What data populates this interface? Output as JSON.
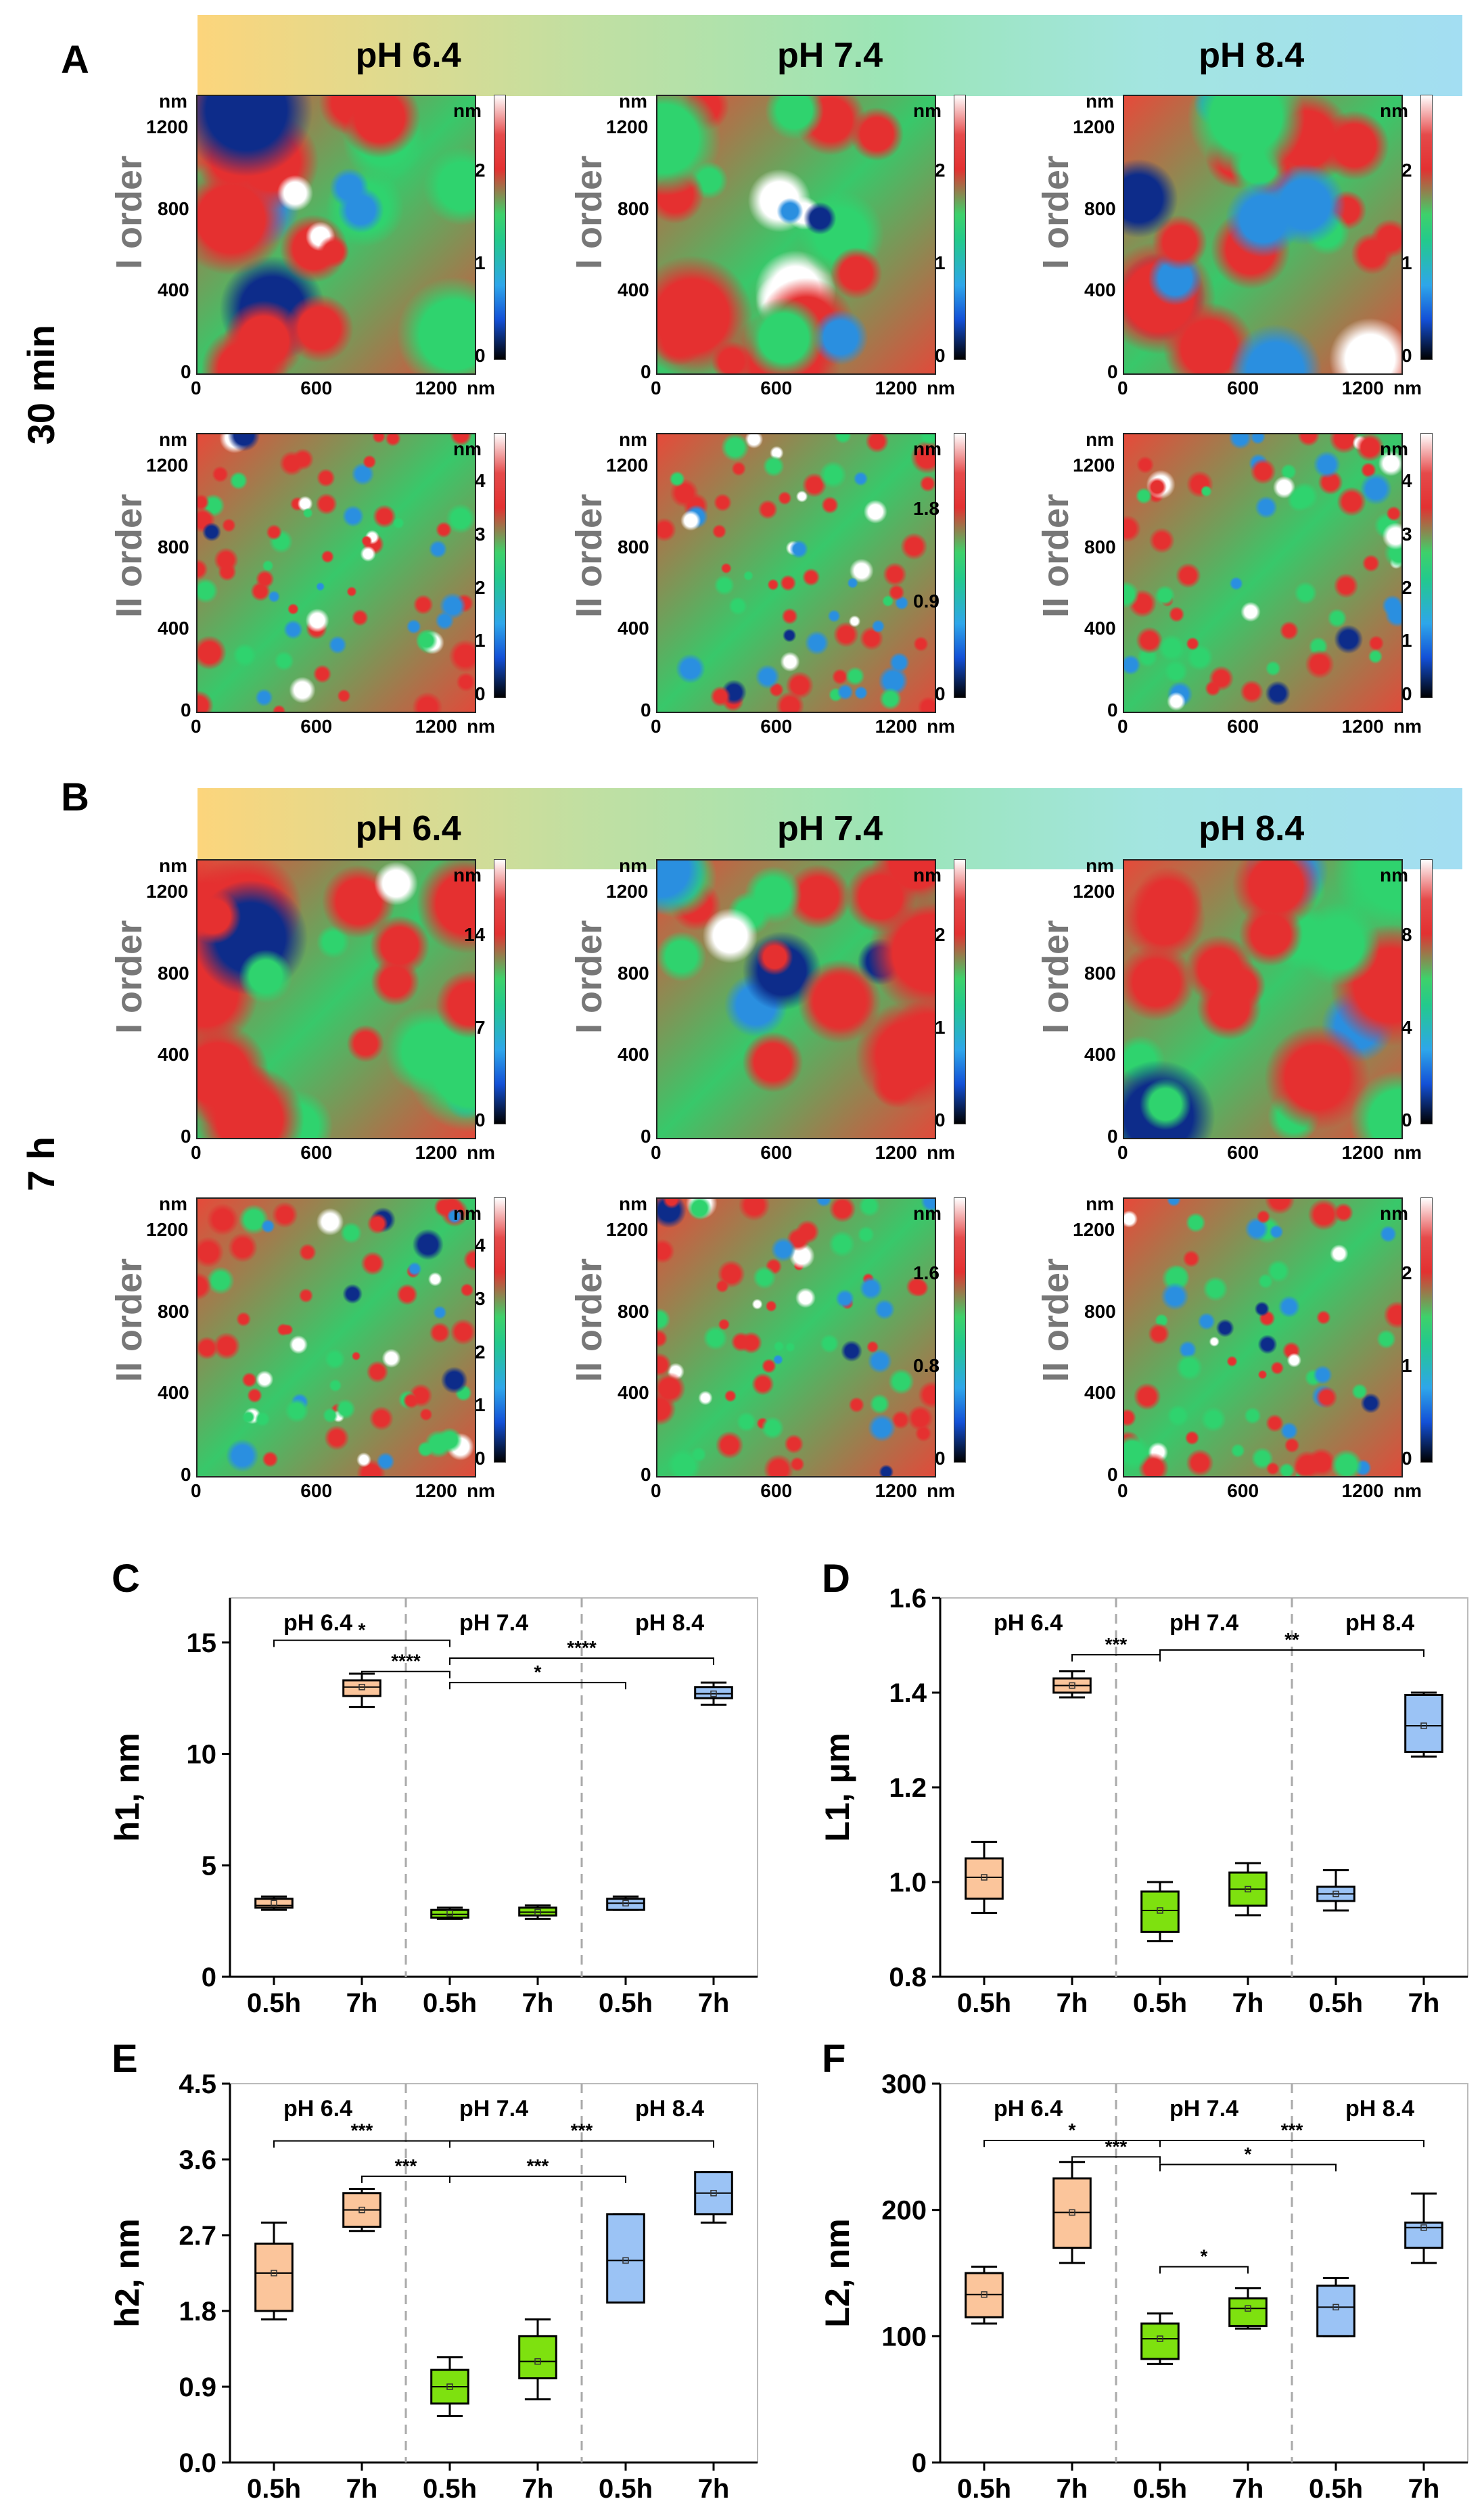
{
  "panel_letters": [
    "A",
    "B",
    "C",
    "D",
    "E",
    "F"
  ],
  "ph_labels": [
    "pH 6.4",
    "pH 7.4",
    "pH 8.4"
  ],
  "time_labels": [
    "30 min",
    "7 h"
  ],
  "order_labels": [
    "I order",
    "II order"
  ],
  "axis_unit": "nm",
  "axis_ticks_x": [
    "0",
    "600",
    "1200"
  ],
  "axis_ticks_y": [
    "0",
    "400",
    "800",
    "1200"
  ],
  "colorbars": {
    "A_I": [
      [
        "2",
        "1",
        "0"
      ],
      [
        "2",
        "1",
        "0"
      ],
      [
        "2",
        "1",
        "0"
      ]
    ],
    "A_II": [
      [
        "4",
        "3",
        "2",
        "1",
        "0"
      ],
      [
        "1.8",
        "0.9",
        "0"
      ],
      [
        "4",
        "3",
        "2",
        "1",
        "0"
      ]
    ],
    "B_I": [
      [
        "14",
        "7",
        "0"
      ],
      [
        "2",
        "1",
        "0"
      ],
      [
        "8",
        "4",
        "0"
      ]
    ],
    "B_II": [
      [
        "4",
        "3",
        "2",
        "1",
        "0"
      ],
      [
        "1.6",
        "0.8",
        "0"
      ],
      [
        "2",
        "1",
        "0"
      ]
    ]
  },
  "box_colors": {
    "ph64": "#fbc59b",
    "ph74": "#7ee10f",
    "ph84": "#9bc3f5"
  },
  "chart_data": [
    {
      "type": "box",
      "panel": "C",
      "ylabel": "h1, nm",
      "ylim": [
        0,
        17
      ],
      "yticks": [
        0,
        5,
        10,
        15
      ],
      "categories": [
        "0.5h",
        "7h",
        "0.5h",
        "7h",
        "0.5h",
        "7h"
      ],
      "groups": [
        "pH 6.4",
        "pH 7.4",
        "pH 8.4"
      ],
      "boxes": [
        {
          "min": 3.0,
          "q1": 3.1,
          "median": 3.2,
          "q3": 3.5,
          "max": 3.6,
          "mean": 3.3
        },
        {
          "min": 12.1,
          "q1": 12.6,
          "median": 13.0,
          "q3": 13.3,
          "max": 13.6,
          "mean": 13.0
        },
        {
          "min": 2.6,
          "q1": 2.65,
          "median": 2.8,
          "q3": 3.0,
          "max": 3.1,
          "mean": 2.85
        },
        {
          "min": 2.6,
          "q1": 2.75,
          "median": 2.9,
          "q3": 3.1,
          "max": 3.2,
          "mean": 2.9
        },
        {
          "min": 3.0,
          "q1": 3.0,
          "median": 3.3,
          "q3": 3.5,
          "max": 3.6,
          "mean": 3.3
        },
        {
          "min": 12.2,
          "q1": 12.5,
          "median": 12.7,
          "q3": 13.0,
          "max": 13.2,
          "mean": 12.7
        }
      ],
      "significance": [
        {
          "from": 0,
          "to": 2,
          "label": "*",
          "level": 15.1
        },
        {
          "from": 1,
          "to": 2,
          "label": "****",
          "level": 13.7
        },
        {
          "from": 2,
          "to": 5,
          "label": "****",
          "level": 14.3
        },
        {
          "from": 2,
          "to": 4,
          "label": "*",
          "level": 13.2
        }
      ]
    },
    {
      "type": "box",
      "panel": "D",
      "ylabel": "L1, μm",
      "ylim": [
        0.8,
        1.6
      ],
      "yticks": [
        0.8,
        1.0,
        1.2,
        1.4,
        1.6
      ],
      "categories": [
        "0.5h",
        "7h",
        "0.5h",
        "7h",
        "0.5h",
        "7h"
      ],
      "groups": [
        "pH 6.4",
        "pH 7.4",
        "pH 8.4"
      ],
      "boxes": [
        {
          "min": 0.935,
          "q1": 0.965,
          "median": 1.01,
          "q3": 1.05,
          "max": 1.085,
          "mean": 1.01
        },
        {
          "min": 1.39,
          "q1": 1.4,
          "median": 1.415,
          "q3": 1.43,
          "max": 1.445,
          "mean": 1.415
        },
        {
          "min": 0.875,
          "q1": 0.895,
          "median": 0.94,
          "q3": 0.98,
          "max": 1.0,
          "mean": 0.94
        },
        {
          "min": 0.93,
          "q1": 0.95,
          "median": 0.985,
          "q3": 1.02,
          "max": 1.04,
          "mean": 0.985
        },
        {
          "min": 0.94,
          "q1": 0.96,
          "median": 0.975,
          "q3": 0.99,
          "max": 1.025,
          "mean": 0.975
        },
        {
          "min": 1.265,
          "q1": 1.275,
          "median": 1.33,
          "q3": 1.395,
          "max": 1.4,
          "mean": 1.33
        }
      ],
      "significance": [
        {
          "from": 1,
          "to": 2,
          "label": "***",
          "level": 1.48
        },
        {
          "from": 2,
          "to": 5,
          "label": "**",
          "level": 1.49
        }
      ]
    },
    {
      "type": "box",
      "panel": "E",
      "ylabel": "h2, nm",
      "ylim": [
        0,
        4.5
      ],
      "yticks": [
        0.0,
        0.9,
        1.8,
        2.7,
        3.6,
        4.5
      ],
      "categories": [
        "0.5h",
        "7h",
        "0.5h",
        "7h",
        "0.5h",
        "7h"
      ],
      "groups": [
        "pH 6.4",
        "pH 7.4",
        "pH 8.4"
      ],
      "boxes": [
        {
          "min": 1.7,
          "q1": 1.8,
          "median": 2.25,
          "q3": 2.6,
          "max": 2.85,
          "mean": 2.25
        },
        {
          "min": 2.75,
          "q1": 2.8,
          "median": 3.0,
          "q3": 3.2,
          "max": 3.25,
          "mean": 3.0
        },
        {
          "min": 0.55,
          "q1": 0.7,
          "median": 0.9,
          "q3": 1.1,
          "max": 1.25,
          "mean": 0.9
        },
        {
          "min": 0.75,
          "q1": 1.0,
          "median": 1.2,
          "q3": 1.5,
          "max": 1.7,
          "mean": 1.2
        },
        {
          "min": 1.9,
          "q1": 1.9,
          "median": 2.4,
          "q3": 2.95,
          "max": 2.95,
          "mean": 2.4
        },
        {
          "min": 2.85,
          "q1": 2.95,
          "median": 3.2,
          "q3": 3.45,
          "max": 3.45,
          "mean": 3.2
        }
      ],
      "significance": [
        {
          "from": 0,
          "to": 2,
          "label": "***",
          "level": 3.82
        },
        {
          "from": 1,
          "to": 2,
          "label": "***",
          "level": 3.4
        },
        {
          "from": 2,
          "to": 5,
          "label": "***",
          "level": 3.82
        },
        {
          "from": 2,
          "to": 4,
          "label": "***",
          "level": 3.4
        }
      ]
    },
    {
      "type": "box",
      "panel": "F",
      "ylabel": "L2, nm",
      "ylim": [
        0,
        300
      ],
      "yticks": [
        0,
        100,
        200,
        300
      ],
      "categories": [
        "0.5h",
        "7h",
        "0.5h",
        "7h",
        "0.5h",
        "7h"
      ],
      "groups": [
        "pH 6.4",
        "pH 7.4",
        "pH 8.4"
      ],
      "boxes": [
        {
          "min": 110,
          "q1": 115,
          "median": 133,
          "q3": 150,
          "max": 155,
          "mean": 133
        },
        {
          "min": 158,
          "q1": 170,
          "median": 198,
          "q3": 225,
          "max": 238,
          "mean": 198
        },
        {
          "min": 78,
          "q1": 82,
          "median": 98,
          "q3": 110,
          "max": 118,
          "mean": 98
        },
        {
          "min": 106,
          "q1": 108,
          "median": 122,
          "q3": 130,
          "max": 138,
          "mean": 122
        },
        {
          "min": 100,
          "q1": 100,
          "median": 123,
          "q3": 140,
          "max": 146,
          "mean": 123
        },
        {
          "min": 158,
          "q1": 170,
          "median": 186,
          "q3": 190,
          "max": 213,
          "mean": 186
        }
      ],
      "significance": [
        {
          "from": 0,
          "to": 2,
          "label": "*",
          "level": 255
        },
        {
          "from": 1,
          "to": 2,
          "label": "***",
          "level": 242
        },
        {
          "from": 2,
          "to": 5,
          "label": "***",
          "level": 255
        },
        {
          "from": 2,
          "to": 4,
          "label": "*",
          "level": 236
        },
        {
          "from": 2,
          "to": 3,
          "label": "*",
          "level": 155
        }
      ]
    }
  ]
}
